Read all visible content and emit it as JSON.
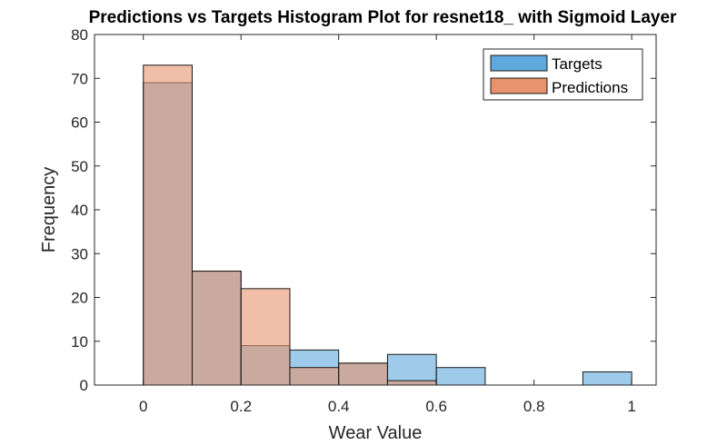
{
  "chart_data": {
    "type": "bar",
    "title": "Predictions vs Targets Histogram Plot for resnet18_ with Sigmoid Layer",
    "xlabel": "Wear Value",
    "ylabel": "Frequency",
    "xlim": [
      -0.1,
      1.05
    ],
    "ylim": [
      0,
      80
    ],
    "xticks": [
      "0",
      "0.2",
      "0.4",
      "0.6",
      "0.8",
      "1"
    ],
    "yticks": [
      "0",
      "10",
      "20",
      "30",
      "40",
      "50",
      "60",
      "70",
      "80"
    ],
    "bin_edges": [
      0,
      0.1,
      0.2,
      0.3,
      0.4,
      0.5,
      0.6,
      0.7,
      0.8,
      0.9,
      1.0
    ],
    "grid": false,
    "legend_position": "top-right",
    "series": [
      {
        "name": "Targets",
        "color": "#5ea8db",
        "values": [
          69,
          26,
          9,
          8,
          5,
          7,
          4,
          0,
          0,
          3
        ]
      },
      {
        "name": "Predictions",
        "color": "#e8926e",
        "values": [
          73,
          26,
          22,
          4,
          5,
          1,
          0,
          0,
          0,
          0
        ]
      }
    ]
  }
}
